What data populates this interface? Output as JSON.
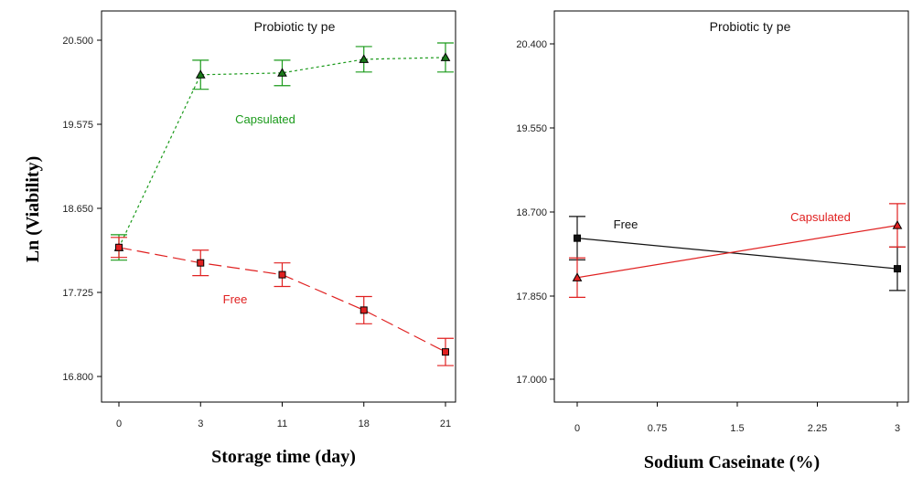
{
  "figure": {
    "ylabel": "Ln (Viability)"
  },
  "chart_data": [
    {
      "type": "line",
      "title": "Probiotic ty pe",
      "xlabel": "Storage time (day)",
      "ylabel": "Ln (Viability)",
      "x_kind": "categorical",
      "categories": [
        "0",
        "3",
        "11",
        "18",
        "21"
      ],
      "yticks": [
        "20.500",
        "19.575",
        "18.650",
        "17.725",
        "16.800"
      ],
      "ylim": [
        16.55,
        20.95
      ],
      "series": [
        {
          "name": "Capsulated",
          "color": "#1a9a1a",
          "dash": "dotted",
          "marker": "triangle",
          "values": [
            18.22,
            20.12,
            20.14,
            20.29,
            20.31
          ],
          "err": [
            0.14,
            0.16,
            0.14,
            0.14,
            0.16
          ]
        },
        {
          "name": "Free",
          "color": "#e02020",
          "dash": "dashed",
          "marker": "square",
          "values": [
            18.22,
            18.05,
            17.92,
            17.53,
            17.07
          ],
          "err": [
            0.11,
            0.14,
            0.13,
            0.15,
            0.15
          ]
        }
      ]
    },
    {
      "type": "line",
      "title": "Probiotic ty pe",
      "xlabel": "Sodium Caseinate (%)",
      "ylabel": "",
      "x_kind": "numeric",
      "xticks": [
        "0",
        "0.75",
        "1.5",
        "2.25",
        "3"
      ],
      "xlim": [
        0,
        3
      ],
      "yticks": [
        "20.400",
        "19.550",
        "18.700",
        "17.850",
        "17.000"
      ],
      "ylim": [
        16.85,
        20.65
      ],
      "series": [
        {
          "name": "Free",
          "color": "#111111",
          "dash": "solid",
          "marker": "square",
          "x": [
            0,
            3
          ],
          "values": [
            18.43,
            18.12
          ],
          "err": [
            0.22,
            0.22
          ]
        },
        {
          "name": "Capsulated",
          "color": "#e02020",
          "dash": "solid",
          "marker": "triangle",
          "x": [
            0,
            3
          ],
          "values": [
            18.03,
            18.56
          ],
          "err": [
            0.2,
            0.22
          ]
        }
      ]
    }
  ]
}
